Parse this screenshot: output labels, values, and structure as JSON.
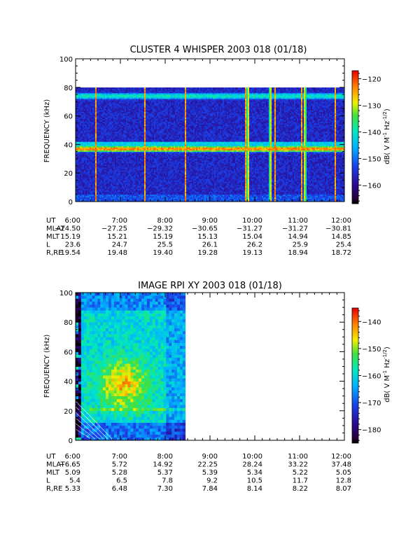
{
  "panels": [
    {
      "id": "whisper",
      "title": "CLUSTER 4 WHISPER 2003 018 (01/18)",
      "ylabel": "FREQUENCY (kHz)",
      "cbar_unit": "dB( V M⁻¹ Hz⁻¹ᐟ²)",
      "cbar_unit_main": "dB( V M",
      "cbar_unit_sup1": "-1",
      "cbar_unit_mid": " Hz",
      "cbar_unit_sup2": "-1/2",
      "cbar_unit_end": ")",
      "orbit": {
        "labels": [
          "UT",
          "MLAT",
          "MLT",
          "L",
          "R,RE"
        ],
        "rows": [
          [
            "6:00",
            "7:00",
            "8:00",
            "9:00",
            "10:00",
            "11:00",
            "12:00"
          ],
          [
            "−24.50",
            "−27.25",
            "−29.32",
            "−30.65",
            "−31.27",
            "−31.27",
            "−30.81"
          ],
          [
            "15.19",
            "15.21",
            "15.19",
            "15.13",
            "15.04",
            "14.94",
            "14.85"
          ],
          [
            "23.6",
            "24.7",
            "25.5",
            "26.1",
            "26.2",
            "25.9",
            "25.4"
          ],
          [
            "19.54",
            "19.48",
            "19.40",
            "19.28",
            "19.13",
            "18.94",
            "18.72"
          ]
        ]
      }
    },
    {
      "id": "rpi",
      "title": "IMAGE RPI XY 2003 018 (01/18)",
      "ylabel": "FREQUENCY (kHz)",
      "cbar_unit_main": "dB( V M",
      "cbar_unit_sup1": "-1",
      "cbar_unit_mid": " Hz",
      "cbar_unit_sup2": "-1/2",
      "cbar_unit_end": ")",
      "orbit": {
        "labels": [
          "UT",
          "MLAT",
          "MLT",
          "L",
          "R,RE"
        ],
        "rows": [
          [
            "6:00",
            "7:00",
            "8:00",
            "9:00",
            "10:00",
            "11:00",
            "12:00"
          ],
          [
            "−6.65",
            "5.72",
            "14.92",
            "22.25",
            "28.24",
            "33.22",
            "37.48"
          ],
          [
            "5.09",
            "5.28",
            "5.37",
            "5.39",
            "5.34",
            "5.22",
            "5.05"
          ],
          [
            "5.4",
            "6.5",
            "7.8",
            "9.2",
            "10.5",
            "11.7",
            "12.8"
          ],
          [
            "5.33",
            "6.48",
            "7.30",
            "7.84",
            "8.14",
            "8.22",
            "8.07"
          ]
        ]
      }
    }
  ],
  "chart_data": [
    {
      "type": "heatmap",
      "title": "CLUSTER 4 WHISPER 2003 018 (01/18)",
      "ylabel": "FREQUENCY (kHz)",
      "xlim": [
        6,
        12
      ],
      "ylim": [
        0,
        100
      ],
      "yticks": [
        0,
        20,
        40,
        60,
        80,
        100
      ],
      "xticks": [
        "6:00",
        "7:00",
        "8:00",
        "9:00",
        "10:00",
        "11:00",
        "12:00"
      ],
      "data_freq_max": 80,
      "colorbar": {
        "range": [
          -167,
          -117
        ],
        "ticks": [
          -160,
          -150,
          -140,
          -130,
          -120
        ]
      },
      "features": {
        "bands": [
          {
            "freq": 37,
            "level": -123
          },
          {
            "freq": 74,
            "level": -140
          }
        ],
        "bursts_hours": [
          6.45,
          7.55,
          8.45,
          9.8,
          9.85,
          10.35,
          10.45,
          11.05,
          11.12,
          11.8
        ]
      }
    },
    {
      "type": "heatmap",
      "title": "IMAGE RPI XY 2003 018 (01/18)",
      "ylabel": "FREQUENCY (kHz)",
      "xlim": [
        6,
        12
      ],
      "ylim": [
        0,
        100
      ],
      "yticks": [
        0,
        20,
        40,
        60,
        80,
        100
      ],
      "xticks": [
        "6:00",
        "7:00",
        "8:00",
        "9:00",
        "10:00",
        "11:00",
        "12:00"
      ],
      "data_end_hour": 8.45,
      "colorbar": {
        "range": [
          -185,
          -135
        ],
        "ticks": [
          -180,
          -170,
          -160,
          -150,
          -140
        ]
      }
    }
  ]
}
